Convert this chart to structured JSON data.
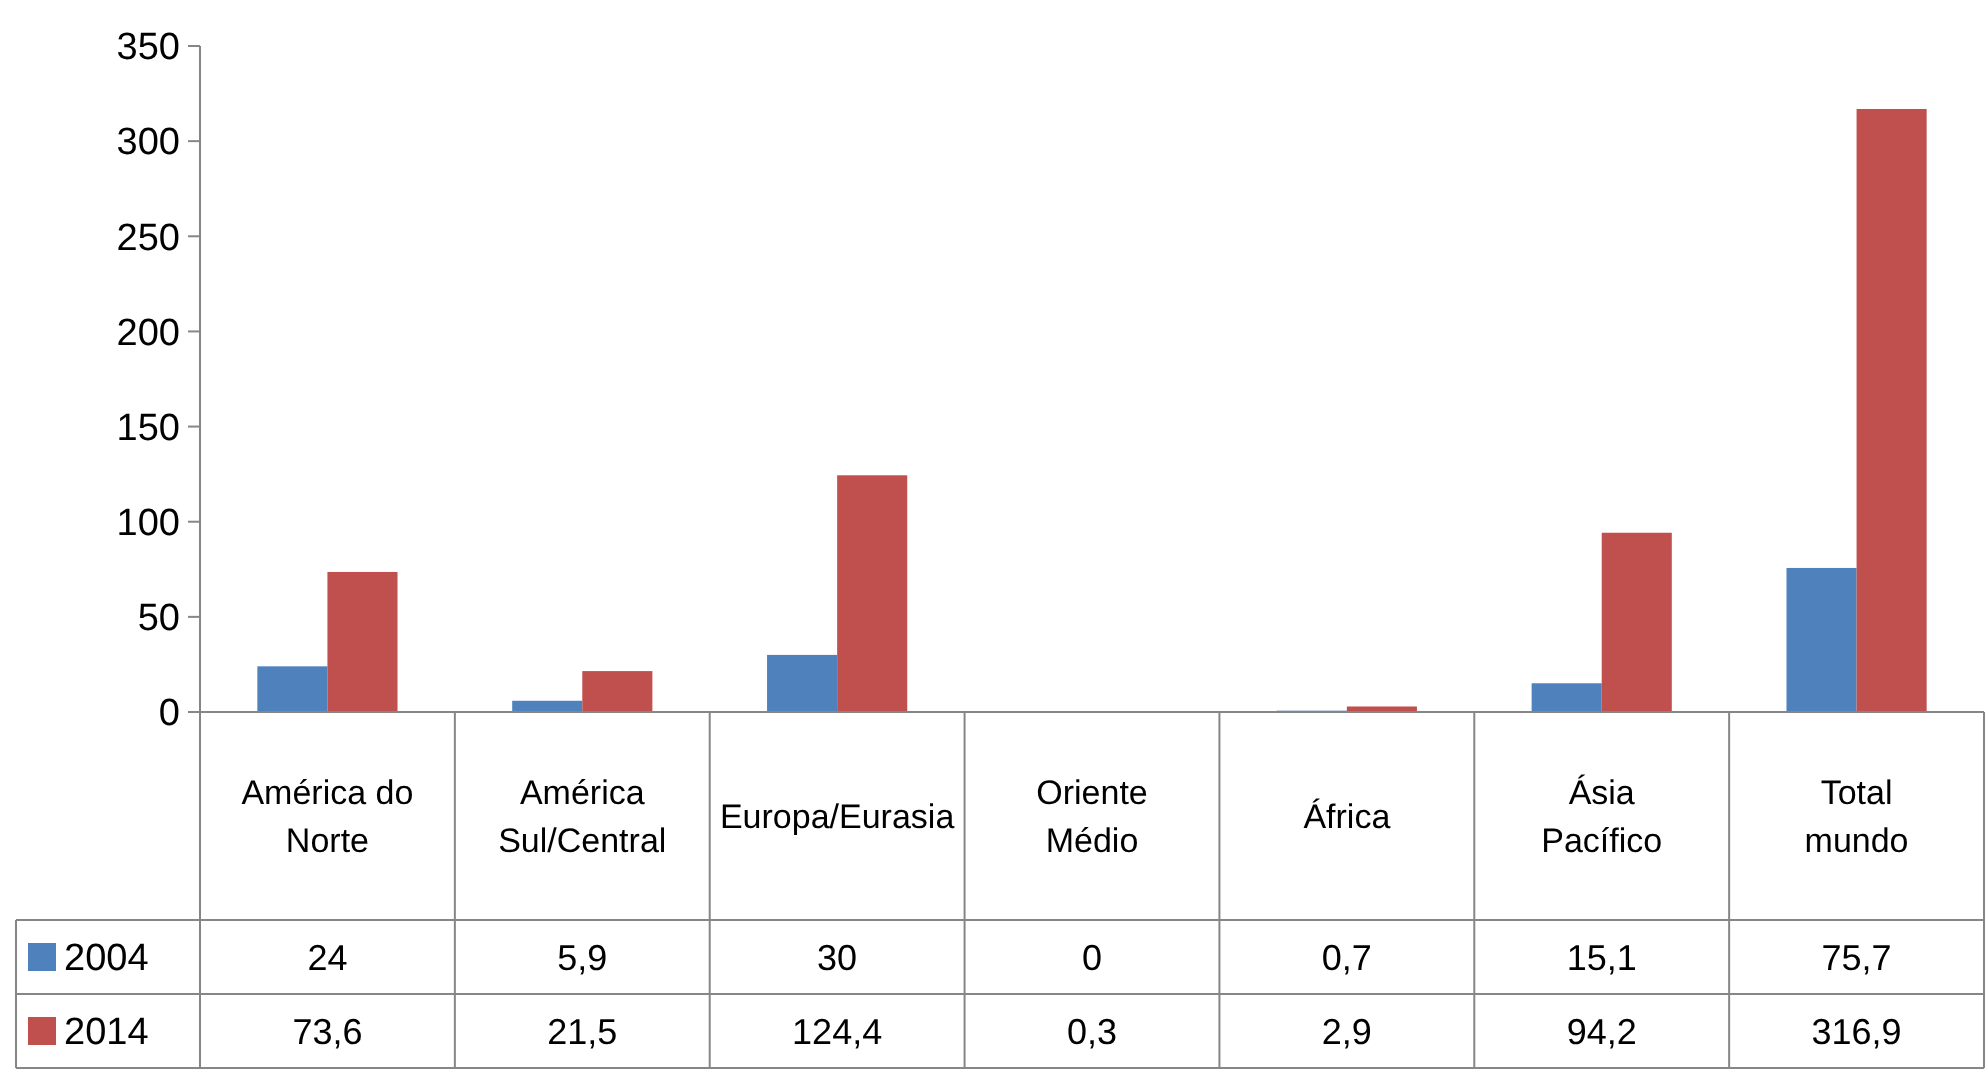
{
  "chart_data": {
    "type": "bar",
    "categories": [
      "América do Norte",
      "América Sul/Central",
      "Europa/Eurasia",
      "Oriente Médio",
      "África",
      "Ásia Pacífico",
      "Total mundo"
    ],
    "series": [
      {
        "name": "2004",
        "color": "#4f81bd",
        "values": [
          24,
          5.9,
          30,
          0,
          0.7,
          15.1,
          75.7
        ],
        "value_labels": [
          "24",
          "5,9",
          "30",
          "0",
          "0,7",
          "15,1",
          "75,7"
        ]
      },
      {
        "name": "2014",
        "color": "#c0504d",
        "values": [
          73.6,
          21.5,
          124.4,
          0.3,
          2.9,
          94.2,
          316.9
        ],
        "value_labels": [
          "73,6",
          "21,5",
          "124,4",
          "0,3",
          "2,9",
          "94,2",
          "316,9"
        ]
      }
    ],
    "ylim": [
      0,
      350
    ],
    "yticks": [
      0,
      50,
      100,
      150,
      200,
      250,
      300,
      350
    ],
    "legend": "bottom left"
  }
}
